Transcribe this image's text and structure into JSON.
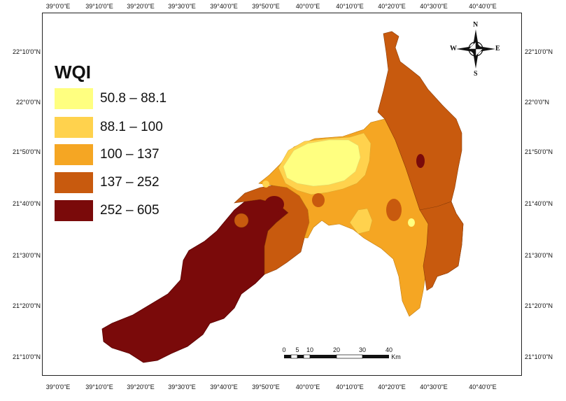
{
  "map": {
    "top_ticks": [
      "39°0'0\"E",
      "39°10'0\"E",
      "39°20'0\"E",
      "39°30'0\"E",
      "39°40'0\"E",
      "39°50'0\"E",
      "40°0'0\"E",
      "40°10'0\"E",
      "40°20'0\"E",
      "40°30'0\"E",
      "40°40'0\"E"
    ],
    "bottom_ticks": [
      "39°0'0\"E",
      "39°10'0\"E",
      "39°20'0\"E",
      "39°30'0\"E",
      "39°40'0\"E",
      "39°50'0\"E",
      "40°0'0\"E",
      "40°10'0\"E",
      "40°20'0\"E",
      "40°30'0\"E",
      "40°40'0\"E"
    ],
    "left_ticks": [
      "22°10'0\"N",
      "22°0'0\"N",
      "21°50'0\"N",
      "21°40'0\"N",
      "21°30'0\"N",
      "21°20'0\"N",
      "21°10'0\"N"
    ],
    "right_ticks": [
      "22°10'0\"N",
      "22°0'0\"N",
      "21°50'0\"N",
      "21°40'0\"N",
      "21°30'0\"N",
      "21°20'0\"N",
      "21°10'0\"N"
    ]
  },
  "legend": {
    "title": "WQI",
    "classes": [
      {
        "label": "50.8 – 88.1",
        "color": "#ffff80"
      },
      {
        "label": "88.1 – 100",
        "color": "#ffd24d"
      },
      {
        "label": "100 – 137",
        "color": "#f5a623"
      },
      {
        "label": "137 – 252",
        "color": "#c85a0e"
      },
      {
        "label": "252 – 605",
        "color": "#7a0a0a"
      }
    ]
  },
  "scale_bar": {
    "labels": [
      "0",
      "5",
      "10",
      "20",
      "30",
      "40"
    ],
    "unit": "Km"
  },
  "compass": {
    "n": "N",
    "s": "S",
    "e": "E",
    "w": "W"
  }
}
